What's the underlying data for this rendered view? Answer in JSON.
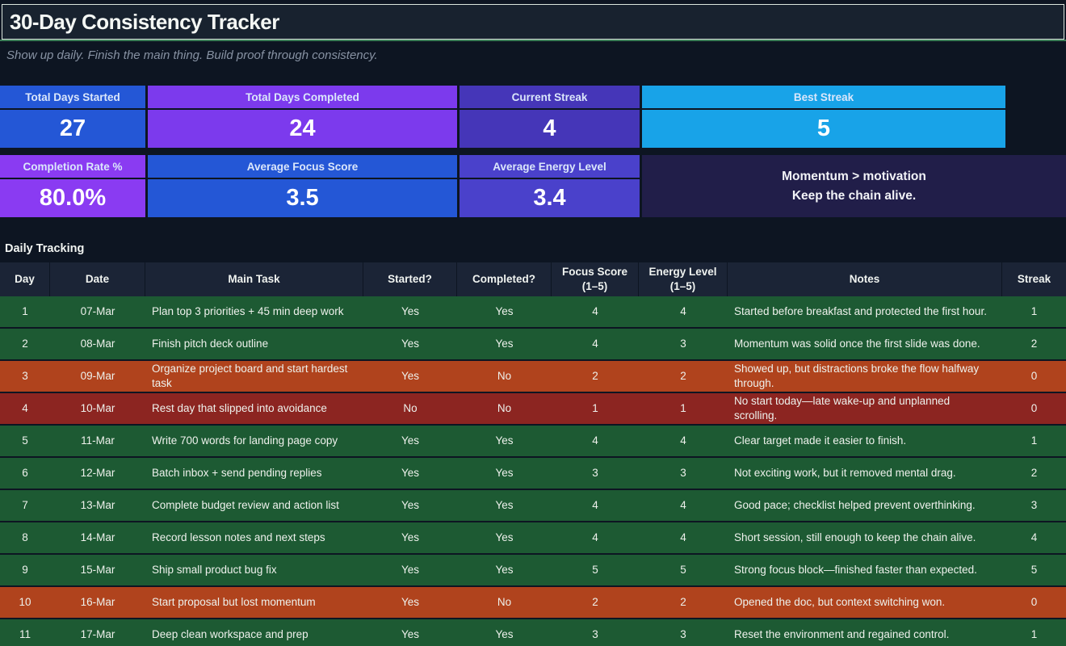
{
  "header": {
    "title": "30-Day Consistency Tracker",
    "subtitle": "Show up daily. Finish the main thing. Build proof through consistency."
  },
  "kpis": {
    "row1": [
      {
        "label": "Total Days Started",
        "value": "27",
        "color": "#2457d6"
      },
      {
        "label": "Total Days Completed",
        "value": "24",
        "color": "#7c3aed"
      },
      {
        "label": "Current Streak",
        "value": "4",
        "color": "#4536b8"
      },
      {
        "label": "Best Streak",
        "value": "5",
        "color": "#18a3e8"
      }
    ],
    "row2": [
      {
        "label": "Completion Rate %",
        "value": "80.0%",
        "color": "#8a3bf2"
      },
      {
        "label": "Average Focus Score",
        "value": "3.5",
        "color": "#2457d6"
      },
      {
        "label": "Average Energy Level",
        "value": "3.4",
        "color": "#4a41cb"
      }
    ],
    "momentum": {
      "line1": "Momentum > motivation",
      "line2": "Keep the chain alive.",
      "color": "#211e49"
    }
  },
  "table": {
    "section_title": "Daily Tracking",
    "columns": [
      {
        "label": "Day"
      },
      {
        "label": "Date"
      },
      {
        "label": "Main Task"
      },
      {
        "label": "Started?"
      },
      {
        "label": "Completed?"
      },
      {
        "label": "Focus Score",
        "sub": "(1–5)"
      },
      {
        "label": "Energy Level",
        "sub": "(1–5)"
      },
      {
        "label": "Notes"
      },
      {
        "label": "Streak"
      }
    ],
    "rows": [
      {
        "day": "1",
        "date": "07-Mar",
        "task": "Plan top 3 priorities + 45 min deep work",
        "started": "Yes",
        "completed": "Yes",
        "focus": "4",
        "energy": "4",
        "notes": "Started before breakfast and protected the first hour.",
        "streak": "1",
        "status": "done"
      },
      {
        "day": "2",
        "date": "08-Mar",
        "task": "Finish pitch deck outline",
        "started": "Yes",
        "completed": "Yes",
        "focus": "4",
        "energy": "3",
        "notes": "Momentum was solid once the first slide was done.",
        "streak": "2",
        "status": "done"
      },
      {
        "day": "3",
        "date": "09-Mar",
        "task": "Organize project board and start hardest task",
        "started": "Yes",
        "completed": "No",
        "focus": "2",
        "energy": "2",
        "notes": "Showed up, but distractions broke the flow halfway through.",
        "streak": "0",
        "status": "partial"
      },
      {
        "day": "4",
        "date": "10-Mar",
        "task": "Rest day that slipped into avoidance",
        "started": "No",
        "completed": "No",
        "focus": "1",
        "energy": "1",
        "notes": "No start today—late wake-up and unplanned scrolling.",
        "streak": "0",
        "status": "missed"
      },
      {
        "day": "5",
        "date": "11-Mar",
        "task": "Write 700 words for landing page copy",
        "started": "Yes",
        "completed": "Yes",
        "focus": "4",
        "energy": "4",
        "notes": "Clear target made it easier to finish.",
        "streak": "1",
        "status": "done"
      },
      {
        "day": "6",
        "date": "12-Mar",
        "task": "Batch inbox + send pending replies",
        "started": "Yes",
        "completed": "Yes",
        "focus": "3",
        "energy": "3",
        "notes": "Not exciting work, but it removed mental drag.",
        "streak": "2",
        "status": "done"
      },
      {
        "day": "7",
        "date": "13-Mar",
        "task": "Complete budget review and action list",
        "started": "Yes",
        "completed": "Yes",
        "focus": "4",
        "energy": "4",
        "notes": "Good pace; checklist helped prevent overthinking.",
        "streak": "3",
        "status": "done"
      },
      {
        "day": "8",
        "date": "14-Mar",
        "task": "Record lesson notes and next steps",
        "started": "Yes",
        "completed": "Yes",
        "focus": "4",
        "energy": "4",
        "notes": "Short session, still enough to keep the chain alive.",
        "streak": "4",
        "status": "done"
      },
      {
        "day": "9",
        "date": "15-Mar",
        "task": "Ship small product bug fix",
        "started": "Yes",
        "completed": "Yes",
        "focus": "5",
        "energy": "5",
        "notes": "Strong focus block—finished faster than expected.",
        "streak": "5",
        "status": "done"
      },
      {
        "day": "10",
        "date": "16-Mar",
        "task": "Start proposal but lost momentum",
        "started": "Yes",
        "completed": "No",
        "focus": "2",
        "energy": "2",
        "notes": "Opened the doc, but context switching won.",
        "streak": "0",
        "status": "partial"
      },
      {
        "day": "11",
        "date": "17-Mar",
        "task": "Deep clean workspace and prep",
        "started": "Yes",
        "completed": "Yes",
        "focus": "3",
        "energy": "3",
        "notes": "Reset the environment and regained control.",
        "streak": "1",
        "status": "done"
      }
    ]
  },
  "colors": {
    "page_bg": "#0d1522",
    "header_bg": "#1b2436",
    "title_rule_green": "#3c7f58",
    "row_done": "#1d5a33",
    "row_partial": "#b0431d",
    "row_missed": "#8c2521"
  }
}
